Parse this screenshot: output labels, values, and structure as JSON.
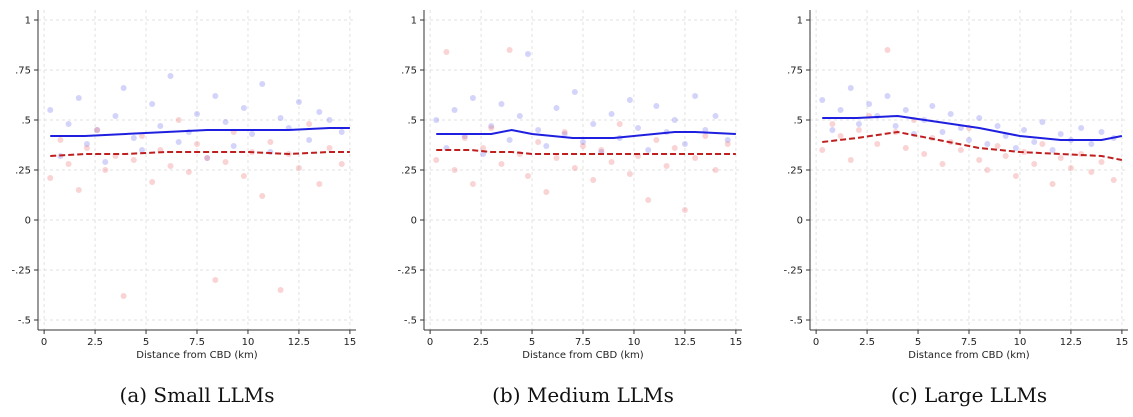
{
  "chart_data": [
    {
      "type": "scatter",
      "caption": "(a) Small LLMs",
      "x_label": "Distance from CBD (km)",
      "xlim": [
        -0.3,
        15.3
      ],
      "ylim": [
        -0.55,
        1.05
      ],
      "xticks": [
        0,
        2.5,
        5,
        7.5,
        10,
        12.5,
        15
      ],
      "yticks": [
        {
          "value": -0.5,
          "label": "-.5"
        },
        {
          "value": -0.25,
          "label": "-.25"
        },
        0,
        {
          "value": 0.25,
          "label": ".25"
        },
        {
          "value": 0.5,
          "label": ".5"
        },
        {
          "value": 0.75,
          "label": ".75"
        },
        1
      ],
      "grid": true,
      "series": [
        {
          "style": "points",
          "color": "#6f6ff2",
          "opacity": 0.3,
          "x": [
            0.3,
            0.8,
            1.2,
            1.7,
            2.1,
            2.6,
            3.0,
            3.5,
            3.9,
            4.4,
            4.8,
            5.3,
            5.7,
            6.2,
            6.6,
            7.1,
            7.5,
            8.0,
            8.4,
            8.9,
            9.3,
            9.8,
            10.2,
            10.7,
            11.1,
            11.6,
            12.0,
            12.5,
            13.0,
            13.5,
            14.0,
            14.6
          ],
          "values": [
            0.55,
            0.32,
            0.48,
            0.61,
            0.38,
            0.45,
            0.29,
            0.52,
            0.66,
            0.41,
            0.35,
            0.58,
            0.47,
            0.72,
            0.39,
            0.44,
            0.53,
            0.31,
            0.62,
            0.49,
            0.37,
            0.56,
            0.43,
            0.68,
            0.34,
            0.51,
            0.46,
            0.59,
            0.4,
            0.54,
            0.5,
            0.44
          ]
        },
        {
          "style": "points",
          "color": "#ee6f6f",
          "opacity": 0.3,
          "x": [
            0.3,
            0.8,
            1.2,
            1.7,
            2.1,
            2.6,
            3.0,
            3.5,
            3.9,
            4.4,
            4.8,
            5.3,
            5.7,
            6.2,
            6.6,
            7.1,
            7.5,
            8.0,
            8.4,
            8.9,
            9.3,
            9.8,
            10.2,
            10.7,
            11.1,
            11.6,
            12.0,
            12.5,
            13.0,
            13.5,
            14.0,
            14.6
          ],
          "values": [
            0.21,
            0.4,
            0.28,
            0.15,
            0.36,
            0.45,
            0.25,
            0.32,
            -0.38,
            0.3,
            0.42,
            0.19,
            0.35,
            0.27,
            0.5,
            0.24,
            0.38,
            0.31,
            -0.3,
            0.29,
            0.44,
            0.22,
            0.34,
            0.12,
            0.39,
            -0.35,
            0.33,
            0.26,
            0.48,
            0.18,
            0.36,
            0.28
          ]
        },
        {
          "style": "line",
          "color": "#1f1fe0",
          "dashed": false,
          "x": [
            0.3,
            2,
            4,
            6,
            8,
            10,
            12,
            14,
            15
          ],
          "values": [
            0.42,
            0.42,
            0.43,
            0.44,
            0.45,
            0.45,
            0.45,
            0.46,
            0.46
          ]
        },
        {
          "style": "line",
          "color": "#c01f1f",
          "dashed": true,
          "x": [
            0.3,
            2,
            4,
            6,
            8,
            10,
            12,
            14,
            15
          ],
          "values": [
            0.32,
            0.33,
            0.33,
            0.34,
            0.34,
            0.34,
            0.33,
            0.34,
            0.34
          ]
        }
      ]
    },
    {
      "type": "scatter",
      "caption": "(b) Medium LLMs",
      "x_label": "Distance from CBD (km)",
      "xlim": [
        -0.3,
        15.3
      ],
      "ylim": [
        -0.55,
        1.05
      ],
      "xticks": [
        0,
        2.5,
        5,
        7.5,
        10,
        12.5,
        15
      ],
      "yticks": [
        {
          "value": -0.5,
          "label": "-.5"
        },
        {
          "value": -0.25,
          "label": "-.25"
        },
        0,
        {
          "value": 0.25,
          "label": ".25"
        },
        {
          "value": 0.5,
          "label": ".5"
        },
        {
          "value": 0.75,
          "label": ".75"
        },
        1
      ],
      "grid": true,
      "series": [
        {
          "style": "points",
          "color": "#6f6ff2",
          "opacity": 0.3,
          "x": [
            0.3,
            0.8,
            1.2,
            1.7,
            2.1,
            2.6,
            3.0,
            3.5,
            3.9,
            4.4,
            4.8,
            5.3,
            5.7,
            6.2,
            6.6,
            7.1,
            7.5,
            8.0,
            8.4,
            8.9,
            9.3,
            9.8,
            10.2,
            10.7,
            11.1,
            11.6,
            12.0,
            12.5,
            13.0,
            13.5,
            14.0,
            14.6
          ],
          "values": [
            0.5,
            0.36,
            0.55,
            0.42,
            0.61,
            0.33,
            0.47,
            0.58,
            0.4,
            0.52,
            0.83,
            0.45,
            0.37,
            0.56,
            0.43,
            0.64,
            0.39,
            0.48,
            0.34,
            0.53,
            0.41,
            0.6,
            0.46,
            0.35,
            0.57,
            0.44,
            0.5,
            0.38,
            0.62,
            0.45,
            0.52,
            0.4
          ]
        },
        {
          "style": "points",
          "color": "#ee6f6f",
          "opacity": 0.3,
          "x": [
            0.3,
            0.8,
            1.2,
            1.7,
            2.1,
            2.6,
            3.0,
            3.5,
            3.9,
            4.4,
            4.8,
            5.3,
            5.7,
            6.2,
            6.6,
            7.1,
            7.5,
            8.0,
            8.4,
            8.9,
            9.3,
            9.8,
            10.2,
            10.7,
            11.1,
            11.6,
            12.0,
            12.5,
            13.0,
            13.5,
            14.0,
            14.6
          ],
          "values": [
            0.3,
            0.84,
            0.25,
            0.41,
            0.18,
            0.36,
            0.46,
            0.28,
            0.85,
            0.33,
            0.22,
            0.39,
            0.14,
            0.31,
            0.44,
            0.26,
            0.37,
            0.2,
            0.35,
            0.29,
            0.48,
            0.23,
            0.32,
            0.1,
            0.4,
            0.27,
            0.36,
            0.05,
            0.31,
            0.42,
            0.25,
            0.38
          ]
        },
        {
          "style": "line",
          "color": "#1f1fe0",
          "dashed": false,
          "x": [
            0.3,
            2,
            3,
            4,
            5,
            7,
            9,
            10,
            12,
            13,
            15
          ],
          "values": [
            0.43,
            0.43,
            0.43,
            0.45,
            0.43,
            0.41,
            0.41,
            0.42,
            0.44,
            0.44,
            0.43
          ]
        },
        {
          "style": "line",
          "color": "#c01f1f",
          "dashed": true,
          "x": [
            0.3,
            2,
            3,
            4,
            5,
            7,
            9,
            10,
            12,
            13,
            15
          ],
          "values": [
            0.35,
            0.35,
            0.34,
            0.34,
            0.33,
            0.33,
            0.33,
            0.33,
            0.33,
            0.33,
            0.33
          ]
        }
      ]
    },
    {
      "type": "scatter",
      "caption": "(c) Large LLMs",
      "x_label": "Distance from CBD (km)",
      "xlim": [
        -0.3,
        15.3
      ],
      "ylim": [
        -0.55,
        1.05
      ],
      "xticks": [
        0,
        2.5,
        5,
        7.5,
        10,
        12.5,
        15
      ],
      "yticks": [
        {
          "value": -0.5,
          "label": "-.5"
        },
        {
          "value": -0.25,
          "label": "-.25"
        },
        0,
        {
          "value": 0.25,
          "label": ".25"
        },
        {
          "value": 0.5,
          "label": ".5"
        },
        {
          "value": 0.75,
          "label": ".75"
        },
        1
      ],
      "grid": true,
      "series": [
        {
          "style": "points",
          "color": "#6f6ff2",
          "opacity": 0.3,
          "x": [
            0.3,
            0.8,
            1.2,
            1.7,
            2.1,
            2.6,
            3.0,
            3.5,
            3.9,
            4.4,
            4.8,
            5.3,
            5.7,
            6.2,
            6.6,
            7.1,
            7.5,
            8.0,
            8.4,
            8.9,
            9.3,
            9.8,
            10.2,
            10.7,
            11.1,
            11.6,
            12.0,
            12.5,
            13.0,
            13.5,
            14.0,
            14.6
          ],
          "values": [
            0.6,
            0.45,
            0.55,
            0.66,
            0.48,
            0.58,
            0.52,
            0.62,
            0.47,
            0.55,
            0.43,
            0.5,
            0.57,
            0.44,
            0.53,
            0.46,
            0.4,
            0.51,
            0.38,
            0.47,
            0.42,
            0.36,
            0.45,
            0.39,
            0.49,
            0.35,
            0.43,
            0.4,
            0.46,
            0.38,
            0.44,
            0.41
          ]
        },
        {
          "style": "points",
          "color": "#ee6f6f",
          "opacity": 0.3,
          "x": [
            0.3,
            0.8,
            1.2,
            1.7,
            2.1,
            2.6,
            3.0,
            3.5,
            3.9,
            4.4,
            4.8,
            5.3,
            5.7,
            6.2,
            6.6,
            7.1,
            7.5,
            8.0,
            8.4,
            8.9,
            9.3,
            9.8,
            10.2,
            10.7,
            11.1,
            11.6,
            12.0,
            12.5,
            13.0,
            13.5,
            14.0,
            14.6
          ],
          "values": [
            0.35,
            0.48,
            0.42,
            0.3,
            0.45,
            0.52,
            0.38,
            0.85,
            0.44,
            0.36,
            0.5,
            0.33,
            0.41,
            0.28,
            0.39,
            0.35,
            0.46,
            0.3,
            0.25,
            0.37,
            0.32,
            0.22,
            0.34,
            0.28,
            0.38,
            0.18,
            0.31,
            0.26,
            0.33,
            0.24,
            0.29,
            0.2
          ]
        },
        {
          "style": "line",
          "color": "#1f1fe0",
          "dashed": false,
          "x": [
            0.3,
            2,
            4,
            6,
            8,
            10,
            12,
            14,
            15
          ],
          "values": [
            0.51,
            0.51,
            0.52,
            0.49,
            0.46,
            0.42,
            0.4,
            0.4,
            0.42
          ]
        },
        {
          "style": "line",
          "color": "#c01f1f",
          "dashed": true,
          "x": [
            0.3,
            2,
            4,
            6,
            8,
            10,
            12,
            14,
            15
          ],
          "values": [
            0.39,
            0.41,
            0.44,
            0.4,
            0.36,
            0.34,
            0.33,
            0.32,
            0.3
          ]
        }
      ]
    }
  ]
}
